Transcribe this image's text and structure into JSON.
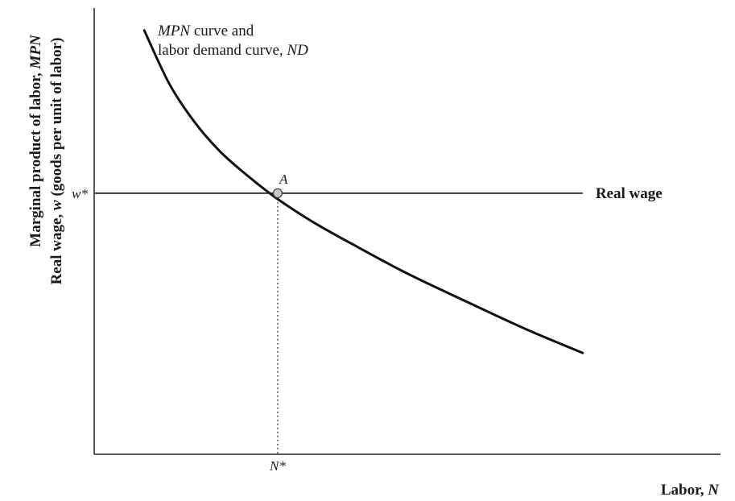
{
  "chart_data": {
    "type": "line",
    "title": "",
    "xlabel": {
      "text": "Labor, ",
      "var": "N"
    },
    "ylabel": {
      "line1": {
        "text": "Marginal product of labor, ",
        "var": "MPN"
      },
      "line2": {
        "pre": "Real wage, ",
        "var": "w",
        "post": " (goods per unit of labor)"
      }
    },
    "xlim": [
      0,
      10
    ],
    "ylim": [
      0,
      10
    ],
    "grid": false,
    "series": [
      {
        "name": "MPN curve and labor demand curve, ND",
        "label_line1": {
          "var": "MPN",
          "text": " curve and"
        },
        "label_line2": {
          "text": "labor demand curve, ",
          "var": "ND"
        },
        "x": [
          0.8,
          1.2,
          1.6,
          2.0,
          2.4,
          2.9,
          3.5,
          4.2,
          5.0,
          5.9,
          6.9,
          7.8
        ],
        "y": [
          9.5,
          8.3,
          7.45,
          6.8,
          6.3,
          5.75,
          5.2,
          4.65,
          4.05,
          3.45,
          2.8,
          2.27
        ],
        "color": "#111111"
      },
      {
        "name": "Real wage",
        "x": [
          0,
          7.8
        ],
        "y": [
          5.85,
          5.85
        ],
        "color": "#3a3a3a"
      }
    ],
    "equilibrium": {
      "point_label": "A",
      "x": 2.93,
      "y": 5.85,
      "x_tick_label": "N*",
      "y_tick_label": "w*"
    }
  }
}
